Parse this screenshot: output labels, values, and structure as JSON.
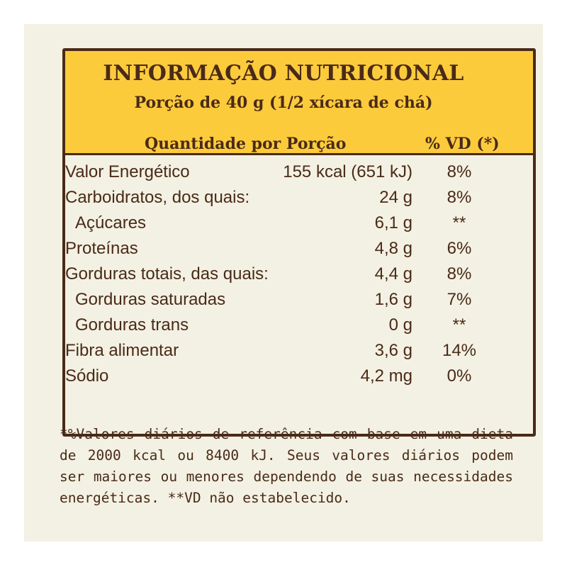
{
  "label": {
    "title": "INFORMAÇÃO NUTRICIONAL",
    "serving": "Porção de 40 g (1/2 xícara de chá)",
    "col_quantity": "Quantidade por Porção",
    "col_vd": "% VD (*)",
    "rows": [
      {
        "name": "Valor Energético",
        "qty": "155 kcal (651 kJ)",
        "vd": "8%"
      },
      {
        "name": "Carboidratos, dos quais:",
        "qty": "24 g",
        "vd": "8%"
      },
      {
        "name": "Açúcares",
        "qty": "6,1 g",
        "vd": "**"
      },
      {
        "name": "Proteínas",
        "qty": "4,8 g",
        "vd": "6%"
      },
      {
        "name": "Gorduras totais, das quais:",
        "qty": "4,4 g",
        "vd": "8%"
      },
      {
        "name": "Gorduras saturadas",
        "qty": "1,6 g",
        "vd": "7%"
      },
      {
        "name": "Gorduras trans",
        "qty": "0 g",
        "vd": "**"
      },
      {
        "name": "Fibra alimentar",
        "qty": "3,6 g",
        "vd": "14%"
      },
      {
        "name": "Sódio",
        "qty": "4,2 mg",
        "vd": "0%"
      }
    ],
    "footnote": "*%Valores diários de referência com base em uma dieta de 2000 kcal ou 8400 kJ. Seus valores diários podem ser maiores ou menores dependendo de suas necessidades energéticas. **VD não estabelecido."
  },
  "colors": {
    "header_bg": "#fccb3c",
    "border": "#4a2a18",
    "background": "#f3f1e3"
  }
}
